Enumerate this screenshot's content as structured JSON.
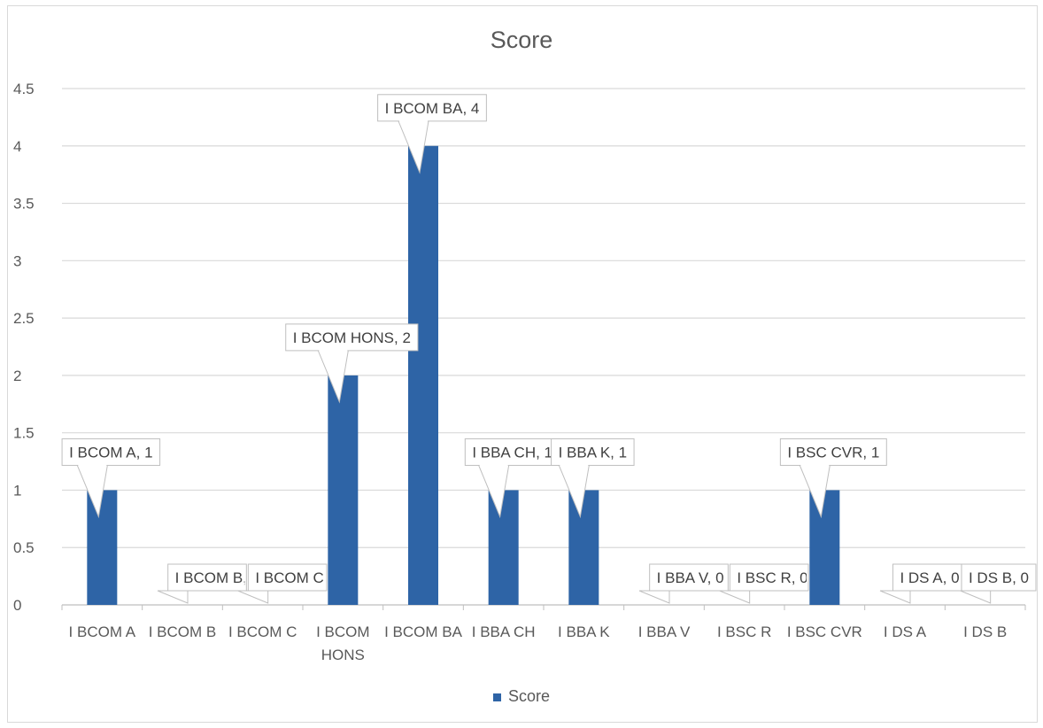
{
  "chart_data": {
    "type": "bar",
    "title": "Score",
    "xlabel": "",
    "ylabel": "",
    "ylim": [
      0,
      4.5
    ],
    "yticks": [
      "0",
      "0.5",
      "1",
      "1.5",
      "2",
      "2.5",
      "3",
      "3.5",
      "4",
      "4.5"
    ],
    "categories": [
      "I BCOM A",
      "I BCOM B",
      "I BCOM C",
      "I BCOM HONS",
      "I BCOM BA",
      "I BBA CH",
      "I BBA K",
      "I BBA V",
      "I BSC R",
      "I BSC CVR",
      "I DS A",
      "I DS B"
    ],
    "series": [
      {
        "name": "Score",
        "values": [
          1,
          0,
          0,
          2,
          4,
          1,
          1,
          0,
          0,
          1,
          0,
          0
        ]
      }
    ],
    "data_labels": [
      "I BCOM A, 1",
      "I BCOM B, 0",
      "I BCOM C, 0",
      "I BCOM HONS, 2",
      "I BCOM BA, 4",
      "I BBA CH, 1",
      "I BBA K, 1",
      "I BBA V, 0",
      "I BSC R, 0",
      "I BSC CVR, 1",
      "I DS A, 0",
      "I DS B, 0"
    ],
    "grid": true,
    "legend": "bottom",
    "color": "#2e64a6"
  }
}
